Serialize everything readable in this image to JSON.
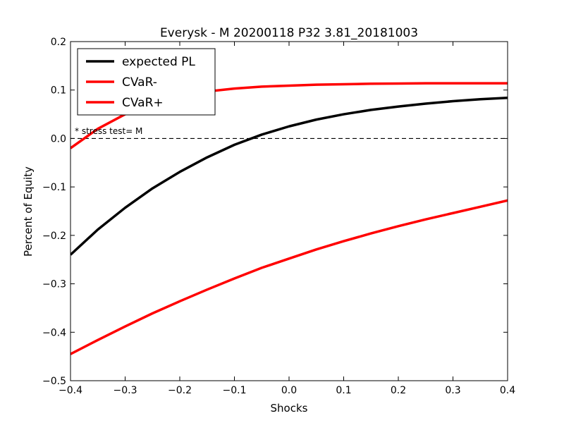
{
  "chart_data": {
    "type": "line",
    "title": "Everysk - M 20200118 P32 3.81_20181003",
    "xlabel": "Shocks",
    "ylabel": "Percent of Equity",
    "xlim": [
      -0.4,
      0.4
    ],
    "ylim": [
      -0.5,
      0.2
    ],
    "xticks": [
      "−0.4",
      "−0.3",
      "−0.2",
      "−0.1",
      "0.0",
      "0.1",
      "0.2",
      "0.3",
      "0.4"
    ],
    "yticks": [
      "−0.5",
      "−0.4",
      "−0.3",
      "−0.2",
      "−0.1",
      "0.0",
      "0.1",
      "0.2"
    ],
    "grid": false,
    "legend_position": "top-left",
    "reference_line": {
      "y": 0.0,
      "style": "dashed",
      "color": "#000000"
    },
    "annotation": "* stress test=  M",
    "x": [
      -0.4,
      -0.35,
      -0.3,
      -0.25,
      -0.2,
      -0.15,
      -0.1,
      -0.05,
      0.0,
      0.05,
      0.1,
      0.15,
      0.2,
      0.25,
      0.3,
      0.35,
      0.4
    ],
    "series": [
      {
        "name": "expected PL",
        "color": "#000000",
        "values": [
          -0.24,
          -0.188,
          -0.143,
          -0.103,
          -0.069,
          -0.039,
          -0.013,
          0.008,
          0.025,
          0.039,
          0.05,
          0.059,
          0.066,
          0.072,
          0.077,
          0.081,
          0.084
        ]
      },
      {
        "name": "CVaR-",
        "color": "#ff0000",
        "values": [
          -0.445,
          -0.416,
          -0.388,
          -0.361,
          -0.336,
          -0.312,
          -0.289,
          -0.267,
          -0.248,
          -0.229,
          -0.212,
          -0.196,
          -0.181,
          -0.167,
          -0.154,
          -0.141,
          -0.128
        ]
      },
      {
        "name": "CVaR+",
        "color": "#ff0000",
        "values": [
          -0.02,
          0.02,
          0.05,
          0.073,
          0.088,
          0.097,
          0.103,
          0.107,
          0.109,
          0.111,
          0.112,
          0.113,
          0.1135,
          0.114,
          0.114,
          0.114,
          0.114
        ]
      }
    ]
  }
}
